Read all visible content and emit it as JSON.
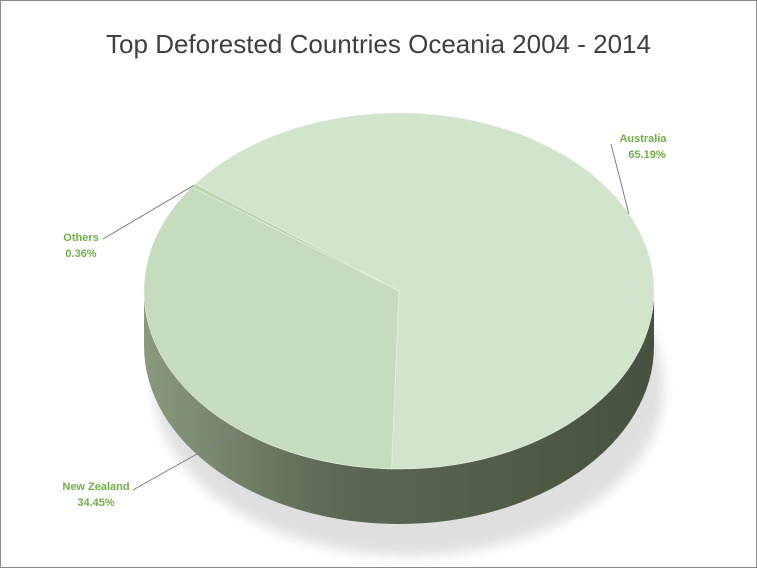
{
  "chart_data": {
    "type": "pie",
    "title": "Top Deforested Countries Oceania 2004 - 2014",
    "categories": [
      "Australia",
      "New Zealand",
      "Others"
    ],
    "values": [
      65.19,
      34.45,
      0.36
    ],
    "labels": [
      "65.19%",
      "34.45%",
      "0.36%"
    ],
    "legend": "none",
    "style": "3d"
  },
  "colors": {
    "label_text": "#70b04a",
    "top_australia": "#d2e5cc",
    "top_new_zealand": "#c6dcbe",
    "top_others": "#bcd6b2",
    "side_dark": "#47513f",
    "side_light": "#8a9a7e",
    "leader": "#7f7f7f"
  }
}
